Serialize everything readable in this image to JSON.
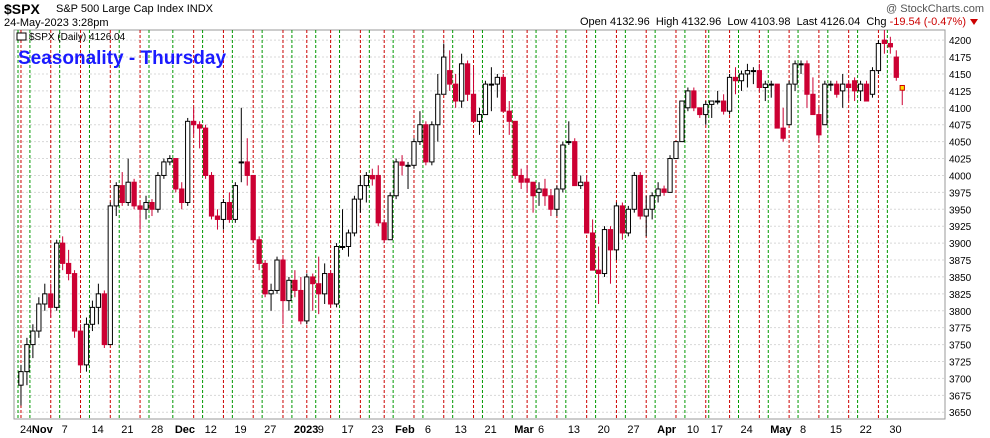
{
  "header": {
    "symbol": "$SPX",
    "name": "S&P 500 Large Cap Index",
    "exchange": "INDX",
    "copyright": "@ StockCharts.com",
    "date": "24-May-2023 3:28pm",
    "open_label": "Open",
    "open": "4132.96",
    "high_label": "High",
    "high": "4132.96",
    "low_label": "Low",
    "low": "4103.98",
    "last_label": "Last",
    "last": "4126.04",
    "chg_label": "Chg",
    "chg": "-19.54 (-0.47%)"
  },
  "chart_data": {
    "type": "candlestick",
    "title": "Seasonality - Thursday",
    "legend": "$SPX (Daily) 4126.04",
    "ylim": [
      3640,
      4215
    ],
    "yticks": [
      3650,
      3675,
      3700,
      3725,
      3750,
      3775,
      3800,
      3825,
      3850,
      3875,
      3900,
      3925,
      3950,
      3975,
      4000,
      4025,
      4050,
      4075,
      4100,
      4125,
      4150,
      4175,
      4200
    ],
    "xlabels": [
      "24",
      "Nov",
      "7",
      "14",
      "21",
      "28",
      "Dec",
      "12",
      "19",
      "27",
      "2023",
      "9",
      "17",
      "23",
      "Feb",
      "6",
      "13",
      "21",
      "Mar",
      "6",
      "13",
      "20",
      "27",
      "Apr",
      "10",
      "17",
      "24",
      "May",
      "8",
      "15",
      "22",
      "30"
    ],
    "grid": true,
    "up_color": "#ffffff",
    "down_color": "#cc0033",
    "thursday_line_color": "#cc0000",
    "weekly_line_color": "#009900",
    "title_color": "#1a1aff",
    "candles": [
      [
        "2022-10-20",
        3690,
        3720,
        3660,
        3710
      ],
      [
        "2022-10-21",
        3710,
        3760,
        3690,
        3750
      ],
      [
        "2022-10-24",
        3750,
        3780,
        3730,
        3770
      ],
      [
        "2022-10-25",
        3770,
        3820,
        3760,
        3810
      ],
      [
        "2022-10-26",
        3810,
        3840,
        3800,
        3825
      ],
      [
        "2022-10-27",
        3825,
        3840,
        3790,
        3805
      ],
      [
        "2022-10-28",
        3805,
        3905,
        3800,
        3900
      ],
      [
        "2022-10-31",
        3900,
        3910,
        3860,
        3870
      ],
      [
        "2022-11-01",
        3870,
        3890,
        3845,
        3855
      ],
      [
        "2022-11-02",
        3855,
        3860,
        3760,
        3770
      ],
      [
        "2022-11-03",
        3770,
        3780,
        3710,
        3720
      ],
      [
        "2022-11-04",
        3720,
        3790,
        3710,
        3780
      ],
      [
        "2022-11-07",
        3780,
        3815,
        3770,
        3805
      ],
      [
        "2022-11-08",
        3805,
        3840,
        3780,
        3825
      ],
      [
        "2022-11-09",
        3825,
        3830,
        3745,
        3750
      ],
      [
        "2022-11-10",
        3750,
        3960,
        3750,
        3955
      ],
      [
        "2022-11-11",
        3955,
        3990,
        3940,
        3985
      ],
      [
        "2022-11-14",
        3985,
        4005,
        3955,
        3960
      ],
      [
        "2022-11-15",
        3960,
        4025,
        3955,
        3990
      ],
      [
        "2022-11-16",
        3990,
        3995,
        3950,
        3955
      ],
      [
        "2022-11-17",
        3955,
        3960,
        3920,
        3950
      ],
      [
        "2022-11-18",
        3950,
        3970,
        3935,
        3960
      ],
      [
        "2022-11-21",
        3960,
        3965,
        3940,
        3950
      ],
      [
        "2022-11-22",
        3950,
        4005,
        3945,
        4000
      ],
      [
        "2022-11-23",
        4000,
        4025,
        3995,
        4020
      ],
      [
        "2022-11-25",
        4020,
        4030,
        4015,
        4025
      ],
      [
        "2022-11-28",
        4025,
        4025,
        3975,
        3980
      ],
      [
        "2022-11-29",
        3980,
        3990,
        3950,
        3960
      ],
      [
        "2022-11-30",
        3960,
        4085,
        3955,
        4080
      ],
      [
        "2022-12-01",
        4080,
        4100,
        4060,
        4075
      ],
      [
        "2022-12-02",
        4075,
        4080,
        4040,
        4070
      ],
      [
        "2022-12-05",
        4070,
        4075,
        3995,
        4000
      ],
      [
        "2022-12-06",
        4000,
        4005,
        3935,
        3940
      ],
      [
        "2022-12-07",
        3940,
        3950,
        3920,
        3935
      ],
      [
        "2022-12-08",
        3935,
        3965,
        3920,
        3960
      ],
      [
        "2022-12-09",
        3960,
        3975,
        3930,
        3935
      ],
      [
        "2022-12-12",
        3935,
        3990,
        3930,
        3985
      ],
      [
        "2022-12-13",
        4020,
        4100,
        3990,
        4020
      ],
      [
        "2022-12-14",
        4020,
        4055,
        3985,
        4000
      ],
      [
        "2022-12-15",
        4000,
        4000,
        3900,
        3905
      ],
      [
        "2022-12-16",
        3905,
        3910,
        3860,
        3870
      ],
      [
        "2022-12-19",
        3870,
        3875,
        3820,
        3825
      ],
      [
        "2022-12-20",
        3825,
        3840,
        3800,
        3830
      ],
      [
        "2022-12-21",
        3830,
        3880,
        3825,
        3875
      ],
      [
        "2022-12-22",
        3875,
        3880,
        3780,
        3815
      ],
      [
        "2022-12-23",
        3815,
        3850,
        3800,
        3845
      ],
      [
        "2022-12-27",
        3845,
        3860,
        3820,
        3830
      ],
      [
        "2022-12-28",
        3830,
        3850,
        3780,
        3785
      ],
      [
        "2022-12-29",
        3785,
        3855,
        3780,
        3850
      ],
      [
        "2022-12-30",
        3850,
        3855,
        3800,
        3840
      ],
      [
        "2023-01-03",
        3840,
        3880,
        3795,
        3825
      ],
      [
        "2023-01-04",
        3825,
        3870,
        3810,
        3855
      ],
      [
        "2023-01-05",
        3855,
        3860,
        3805,
        3810
      ],
      [
        "2023-01-06",
        3810,
        3900,
        3805,
        3895
      ],
      [
        "2023-01-09",
        3895,
        3950,
        3890,
        3895
      ],
      [
        "2023-01-10",
        3895,
        3920,
        3880,
        3915
      ],
      [
        "2023-01-11",
        3915,
        3970,
        3910,
        3965
      ],
      [
        "2023-01-12",
        3965,
        4000,
        3945,
        3985
      ],
      [
        "2023-01-13",
        3985,
        4005,
        3960,
        4000
      ],
      [
        "2023-01-17",
        4000,
        4010,
        3985,
        3995
      ],
      [
        "2023-01-18",
        4000,
        4015,
        3925,
        3930
      ],
      [
        "2023-01-19",
        3930,
        3935,
        3900,
        3905
      ],
      [
        "2023-01-20",
        3905,
        3975,
        3905,
        3970
      ],
      [
        "2023-01-23",
        3970,
        4025,
        3965,
        4020
      ],
      [
        "2023-01-24",
        4020,
        4030,
        4000,
        4015
      ],
      [
        "2023-01-25",
        4015,
        4020,
        3980,
        4015
      ],
      [
        "2023-01-26",
        4015,
        4055,
        4010,
        4050
      ],
      [
        "2023-01-27",
        4050,
        4095,
        4045,
        4075
      ],
      [
        "2023-01-30",
        4075,
        4080,
        4015,
        4020
      ],
      [
        "2023-01-31",
        4020,
        4080,
        4015,
        4075
      ],
      [
        "2023-02-01",
        4075,
        4150,
        4050,
        4120
      ],
      [
        "2023-02-02",
        4120,
        4195,
        4120,
        4175
      ],
      [
        "2023-02-03",
        4155,
        4185,
        4125,
        4135
      ],
      [
        "2023-02-06",
        4135,
        4150,
        4100,
        4110
      ],
      [
        "2023-02-07",
        4110,
        4180,
        4100,
        4165
      ],
      [
        "2023-02-08",
        4165,
        4170,
        4110,
        4120
      ],
      [
        "2023-02-09",
        4120,
        4160,
        4080,
        4080
      ],
      [
        "2023-02-10",
        4080,
        4100,
        4060,
        4090
      ],
      [
        "2023-02-13",
        4090,
        4140,
        4090,
        4135
      ],
      [
        "2023-02-14",
        4135,
        4160,
        4095,
        4135
      ],
      [
        "2023-02-15",
        4135,
        4150,
        4115,
        4145
      ],
      [
        "2023-02-16",
        4145,
        4150,
        4095,
        4095
      ],
      [
        "2023-02-17",
        4095,
        4110,
        4060,
        4080
      ],
      [
        "2023-02-21",
        4080,
        4080,
        3995,
        4000
      ],
      [
        "2023-02-22",
        4000,
        4010,
        3980,
        3990
      ],
      [
        "2023-02-23",
        3995,
        4015,
        3975,
        3990
      ],
      [
        "2023-02-24",
        3990,
        3990,
        3945,
        3970
      ],
      [
        "2023-02-27",
        3975,
        3990,
        3955,
        3980
      ],
      [
        "2023-02-28",
        3980,
        3995,
        3955,
        3970
      ],
      [
        "2023-03-01",
        3970,
        3980,
        3940,
        3950
      ],
      [
        "2023-03-02",
        3950,
        3985,
        3940,
        3980
      ],
      [
        "2023-03-03",
        3980,
        4050,
        3975,
        4045
      ],
      [
        "2023-03-06",
        4050,
        4080,
        4045,
        4050
      ],
      [
        "2023-03-07",
        4050,
        4055,
        3985,
        3985
      ],
      [
        "2023-03-08",
        3985,
        4000,
        3980,
        3990
      ],
      [
        "2023-03-09",
        3990,
        4000,
        3915,
        3915
      ],
      [
        "2023-03-10",
        3915,
        3935,
        3860,
        3860
      ],
      [
        "2023-03-13",
        3860,
        3895,
        3810,
        3855
      ],
      [
        "2023-03-14",
        3855,
        3925,
        3850,
        3920
      ],
      [
        "2023-03-15",
        3920,
        3925,
        3840,
        3890
      ],
      [
        "2023-03-16",
        3890,
        3960,
        3875,
        3955
      ],
      [
        "2023-03-17",
        3955,
        3960,
        3905,
        3915
      ],
      [
        "2023-03-20",
        3915,
        3955,
        3910,
        3950
      ],
      [
        "2023-03-21",
        3950,
        4005,
        3945,
        4000
      ],
      [
        "2023-03-22",
        4000,
        4005,
        3935,
        3940
      ],
      [
        "2023-03-23",
        3940,
        3970,
        3910,
        3950
      ],
      [
        "2023-03-24",
        3950,
        3975,
        3935,
        3970
      ],
      [
        "2023-03-27",
        3970,
        3990,
        3960,
        3980
      ],
      [
        "2023-03-28",
        3980,
        3985,
        3970,
        3975
      ],
      [
        "2023-03-29",
        3975,
        4030,
        3975,
        4025
      ],
      [
        "2023-03-30",
        4025,
        4050,
        4030,
        4050
      ],
      [
        "2023-03-31",
        4050,
        4110,
        4050,
        4110
      ],
      [
        "2023-04-03",
        4100,
        4130,
        4095,
        4125
      ],
      [
        "2023-04-04",
        4125,
        4130,
        4095,
        4100
      ],
      [
        "2023-04-05",
        4100,
        4100,
        4085,
        4090
      ],
      [
        "2023-04-06",
        4090,
        4110,
        4075,
        4105
      ],
      [
        "2023-04-10",
        4105,
        4110,
        4085,
        4110
      ],
      [
        "2023-04-11",
        4110,
        4125,
        4105,
        4110
      ],
      [
        "2023-04-12",
        4110,
        4120,
        4090,
        4095
      ],
      [
        "2023-04-13",
        4095,
        4150,
        4090,
        4145
      ],
      [
        "2023-04-14",
        4145,
        4160,
        4120,
        4140
      ],
      [
        "2023-04-17",
        4140,
        4155,
        4125,
        4150
      ],
      [
        "2023-04-18",
        4150,
        4165,
        4130,
        4155
      ],
      [
        "2023-04-19",
        4155,
        4160,
        4135,
        4155
      ],
      [
        "2023-04-20",
        4155,
        4165,
        4125,
        4130
      ],
      [
        "2023-04-21",
        4130,
        4140,
        4110,
        4135
      ],
      [
        "2023-04-24",
        4135,
        4140,
        4115,
        4135
      ],
      [
        "2023-04-25",
        4135,
        4135,
        4070,
        4070
      ],
      [
        "2023-04-26",
        4070,
        4100,
        4050,
        4055
      ],
      [
        "2023-04-27",
        4075,
        4140,
        4075,
        4135
      ],
      [
        "2023-04-28",
        4135,
        4170,
        4125,
        4165
      ],
      [
        "2023-05-01",
        4165,
        4170,
        4150,
        4165
      ],
      [
        "2023-05-02",
        4165,
        4170,
        4100,
        4120
      ],
      [
        "2023-05-03",
        4120,
        4145,
        4090,
        4090
      ],
      [
        "2023-05-04",
        4090,
        4100,
        4050,
        4060
      ],
      [
        "2023-05-05",
        4075,
        4140,
        4075,
        4135
      ],
      [
        "2023-05-08",
        4135,
        4140,
        4125,
        4135
      ],
      [
        "2023-05-09",
        4135,
        4140,
        4115,
        4120
      ],
      [
        "2023-05-10",
        4125,
        4150,
        4100,
        4135
      ],
      [
        "2023-05-11",
        4135,
        4140,
        4110,
        4130
      ],
      [
        "2023-05-12",
        4140,
        4145,
        4110,
        4125
      ],
      [
        "2023-05-15",
        4125,
        4140,
        4110,
        4135
      ],
      [
        "2023-05-16",
        4135,
        4140,
        4110,
        4110
      ],
      [
        "2023-05-17",
        4120,
        4160,
        4115,
        4155
      ],
      [
        "2023-05-18",
        4155,
        4200,
        4150,
        4195
      ],
      [
        "2023-05-19",
        4200,
        4215,
        4180,
        4195
      ],
      [
        "2023-05-22",
        4195,
        4205,
        4180,
        4190
      ],
      [
        "2023-05-23",
        4175,
        4185,
        4140,
        4145
      ],
      [
        "2023-05-24",
        4133,
        4133,
        4104,
        4126
      ]
    ]
  }
}
